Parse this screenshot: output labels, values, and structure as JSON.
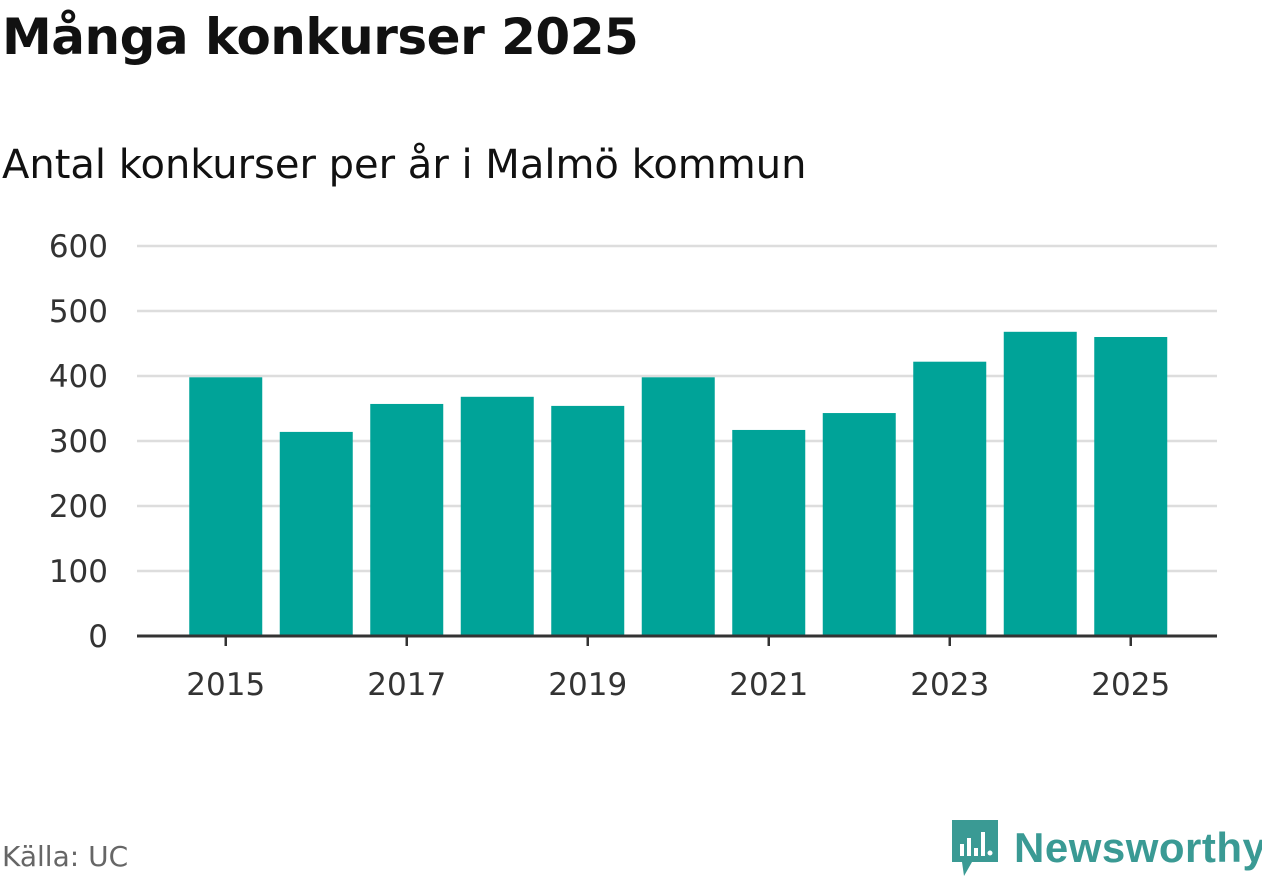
{
  "title": "Många konkurser 2025",
  "subtitle": "Antal konkurser per år i Malmö kommun",
  "source": "Källa: UC",
  "brand": {
    "name": "Newsworthy",
    "color": "#3a9a94",
    "icon": "newsworthy-logo-icon"
  },
  "colors": {
    "bar": "#00a398",
    "grid": "#dddddd",
    "axis": "#333333"
  },
  "chart_data": {
    "type": "bar",
    "title": "Många konkurser 2025",
    "subtitle": "Antal konkurser per år i Malmö kommun",
    "xlabel": "",
    "ylabel": "",
    "categories": [
      "2015",
      "2016",
      "2017",
      "2018",
      "2019",
      "2020",
      "2021",
      "2022",
      "2023",
      "2024",
      "2025"
    ],
    "values": [
      398,
      314,
      357,
      368,
      354,
      398,
      317,
      343,
      422,
      468,
      460
    ],
    "x_tick_labels": [
      "2015",
      "2017",
      "2019",
      "2021",
      "2023",
      "2025"
    ],
    "y_ticks": [
      0,
      100,
      200,
      300,
      400,
      500,
      600
    ],
    "ylim": [
      0,
      600
    ],
    "grid": true,
    "legend": "none"
  }
}
